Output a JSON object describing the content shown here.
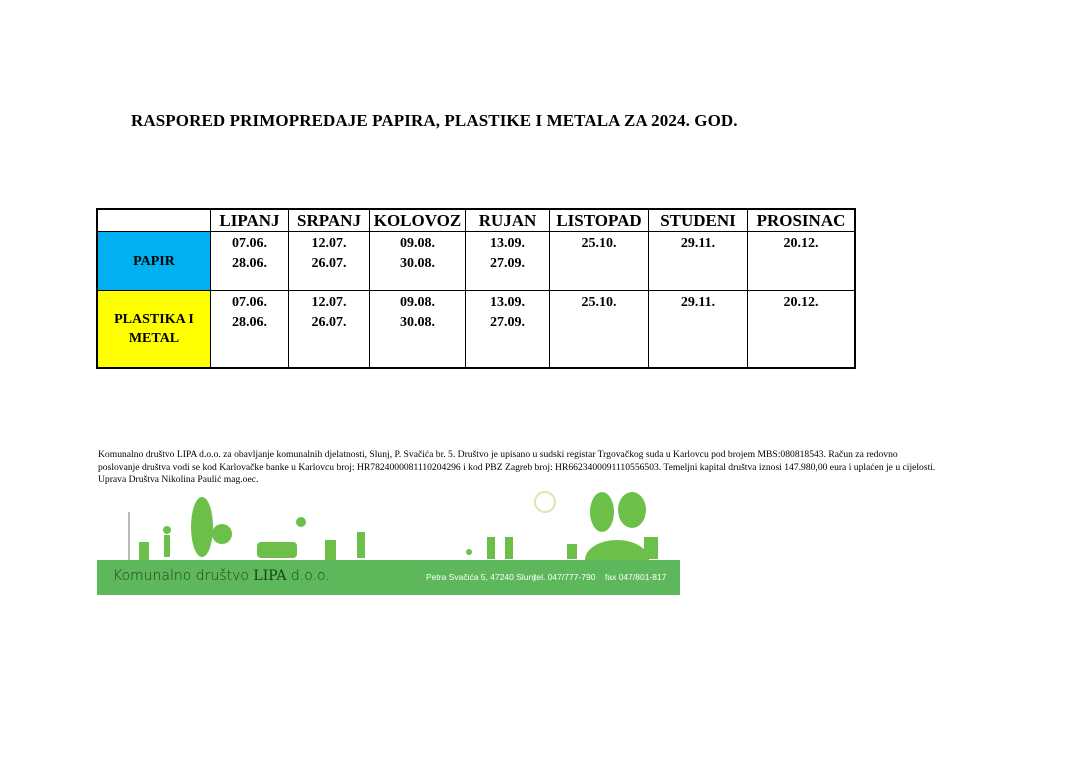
{
  "title": "RASPORED PRIMOPREDAJE PAPIRA, PLASTIKE I METALA ZA 2024. GOD.",
  "table": {
    "headers": [
      "",
      "LIPANJ",
      "SRPANJ",
      "KOLOVOZ",
      "RUJAN",
      "LISTOPAD",
      "STUDENI",
      "PROSINAC"
    ],
    "rows": [
      {
        "label": "PAPIR",
        "color": "#00b0f0",
        "cells": [
          [
            "07.06.",
            "28.06."
          ],
          [
            "12.07.",
            "26.07."
          ],
          [
            "09.08.",
            "30.08."
          ],
          [
            "13.09.",
            "27.09."
          ],
          [
            "25.10."
          ],
          [
            "29.11."
          ],
          [
            "20.12."
          ]
        ]
      },
      {
        "label_lines": [
          "PLASTIKA I",
          "METAL"
        ],
        "color": "#ffff00",
        "cells": [
          [
            "07.06.",
            "28.06."
          ],
          [
            "12.07.",
            "26.07."
          ],
          [
            "09.08.",
            "30.08."
          ],
          [
            "13.09.",
            "27.09."
          ],
          [
            "25.10."
          ],
          [
            "29.11."
          ],
          [
            "20.12."
          ]
        ]
      }
    ]
  },
  "footer": {
    "line1": "Komunalno društvo LIPA d.o.o. za obavljanje komunalnih djelatnosti, Slunj, P. Svačića br. 5. Društvo je upisano u sudski registar Trgovačkog suda u Karlovcu pod brojem MBS:080818543. Račun za redovno",
    "line2": "poslovanje društva vodi se kod Karlovačke banke u Karlovcu broj: HR7824000081110204296 i kod PBZ Zagreb broj: HR6623400091110556503. Temeljni kapital društva iznosi 147.980,00 eura i uplaćen je u cijelosti.",
    "line3": "Uprava Društva Nikolina Paulić mag.oec."
  },
  "banner": {
    "brand_prefix": "Komunalno društvo ",
    "brand_name": "LIPA",
    "brand_suffix": " d.o.o.",
    "address": "Petra Svačića 5, 47240 Slunj",
    "phone": "tel. 047/777-790",
    "fax": "fax 047/801-817",
    "color": "#5cb85a"
  }
}
